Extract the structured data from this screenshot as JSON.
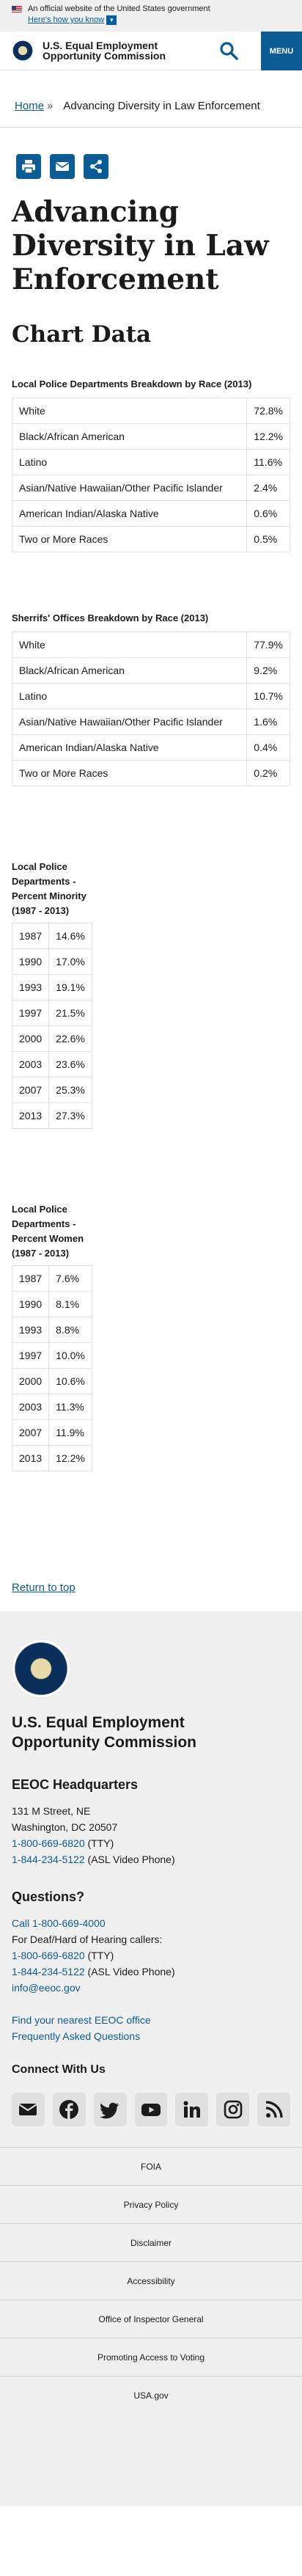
{
  "banner": {
    "text": "An official website of the United States government",
    "link": "Here's how you know"
  },
  "header": {
    "agency_line1": "U.S. Equal Employment",
    "agency_line2": "Opportunity Commission",
    "menu_label": "MENU"
  },
  "breadcrumb": {
    "home": "Home",
    "separator": "»",
    "current": "Advancing Diversity in Law Enforcement"
  },
  "page": {
    "title": "Advancing Diversity in Law Enforcement",
    "section_title": "Chart Data"
  },
  "tables": {
    "local_race": {
      "caption": "Local Police Departments Breakdown by Race (2013)",
      "rows": [
        {
          "label": "White",
          "value": "72.8%"
        },
        {
          "label": "Black/African American",
          "value": "12.2%"
        },
        {
          "label": "Latino",
          "value": "11.6%"
        },
        {
          "label": "Asian/Native Hawaiian/Other Pacific Islander",
          "value": "2.4%"
        },
        {
          "label": "American Indian/Alaska Native",
          "value": "0.6%"
        },
        {
          "label": "Two or More Races",
          "value": "0.5%"
        }
      ]
    },
    "sheriff_race": {
      "caption": "Sherrifs' Offices Breakdown by Race (2013)",
      "rows": [
        {
          "label": "White",
          "value": "77.9%"
        },
        {
          "label": "Black/African American",
          "value": "9.2%"
        },
        {
          "label": "Latino",
          "value": "10.7%"
        },
        {
          "label": "Asian/Native Hawaiian/Other Pacific Islander",
          "value": "1.6%"
        },
        {
          "label": "American Indian/Alaska Native",
          "value": "0.4%"
        },
        {
          "label": "Two or More Races",
          "value": "0.2%"
        }
      ]
    },
    "minority": {
      "caption": "Local Police Departments - Percent Minority (1987 - 2013)",
      "rows": [
        {
          "year": "1987",
          "value": "14.6%"
        },
        {
          "year": "1990",
          "value": "17.0%"
        },
        {
          "year": "1993",
          "value": "19.1%"
        },
        {
          "year": "1997",
          "value": "21.5%"
        },
        {
          "year": "2000",
          "value": "22.6%"
        },
        {
          "year": "2003",
          "value": "23.6%"
        },
        {
          "year": "2007",
          "value": "25.3%"
        },
        {
          "year": "2013",
          "value": "27.3%"
        }
      ]
    },
    "women": {
      "caption": "Local Police Departments - Percent Women (1987 - 2013)",
      "rows": [
        {
          "year": "1987",
          "value": "7.6%"
        },
        {
          "year": "1990",
          "value": "8.1%"
        },
        {
          "year": "1993",
          "value": "8.8%"
        },
        {
          "year": "1997",
          "value": "10.0%"
        },
        {
          "year": "2000",
          "value": "10.6%"
        },
        {
          "year": "2003",
          "value": "11.3%"
        },
        {
          "year": "2007",
          "value": "11.9%"
        },
        {
          "year": "2013",
          "value": "12.2%"
        }
      ]
    }
  },
  "return_link": "Return to top",
  "footer": {
    "agency_line1": "U.S. Equal Employment",
    "agency_line2": "Opportunity Commission",
    "hq_heading": "EEOC Headquarters",
    "address1": "131 M Street, NE",
    "address2": "Washington, DC 20507",
    "phone_tty": "1-800-669-6820",
    "tty_suffix": " (TTY)",
    "phone_asl": "1-844-234-5122",
    "asl_suffix": " (ASL Video Phone)",
    "questions_heading": "Questions?",
    "call": "Call 1-800-669-4000",
    "deaf_text": "For Deaf/Hard of Hearing callers:",
    "email": "info@eeoc.gov",
    "find_office": "Find your nearest EEOC office",
    "faq": "Frequently Asked Questions",
    "connect_heading": "Connect With Us",
    "social": [
      "email-icon",
      "facebook-icon",
      "twitter-icon",
      "youtube-icon",
      "linkedin-icon",
      "instagram-icon",
      "rss-icon"
    ],
    "links": [
      "FOIA",
      "Privacy Policy",
      "Disclaimer",
      "Accessibility",
      "Office of Inspector General",
      "Promoting Access to Voting",
      "USA.gov"
    ]
  },
  "colors": {
    "primary": "#0b5c94",
    "footer_bg": "#f0f0f0",
    "border": "#dfe1e2"
  }
}
